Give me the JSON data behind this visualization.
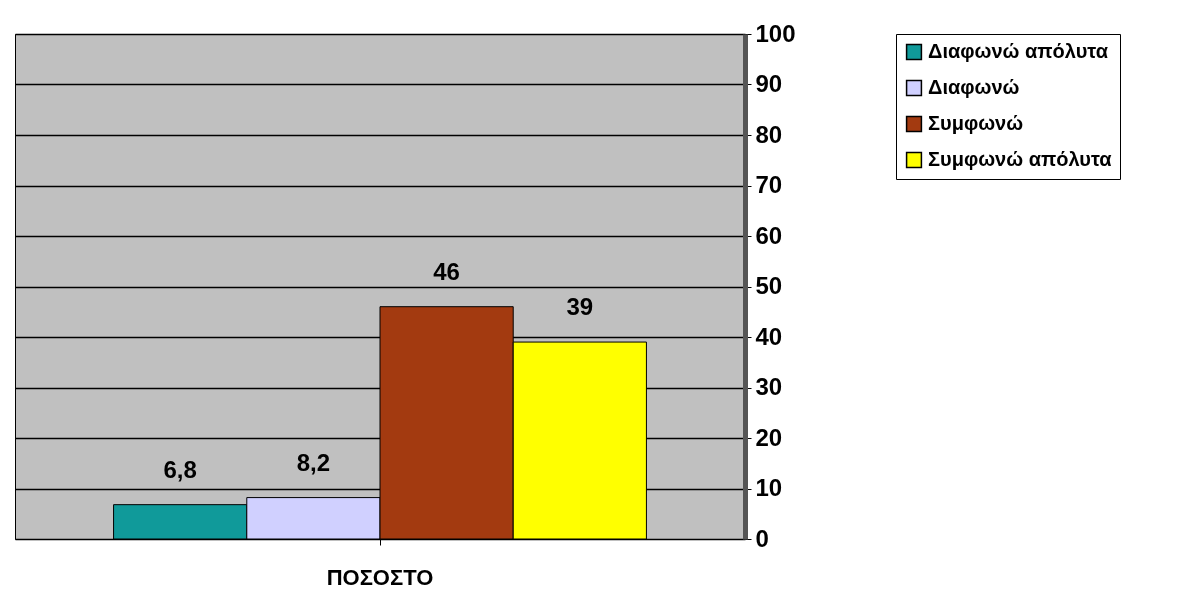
{
  "chart_data": {
    "type": "bar",
    "categories": [
      "ΠΟΣΟΣΤΟ"
    ],
    "series": [
      {
        "name": "Διαφωνώ απόλυτα",
        "color": "#109a9a",
        "values": [
          6.8
        ],
        "value_labels": [
          "6,8"
        ]
      },
      {
        "name": "Διαφωνώ",
        "color": "#d0d0ff",
        "values": [
          8.2
        ],
        "value_labels": [
          "8,2"
        ]
      },
      {
        "name": "Συμφωνώ",
        "color": "#a33a10",
        "values": [
          46
        ],
        "value_labels": [
          "46"
        ]
      },
      {
        "name": "Συμφωνώ απόλυτα",
        "color": "#ffff00",
        "values": [
          39
        ],
        "value_labels": [
          "39"
        ]
      }
    ],
    "ylim": [
      0,
      100
    ],
    "yticks": [
      0,
      10,
      20,
      30,
      40,
      50,
      60,
      70,
      80,
      90,
      100
    ],
    "grid": "y",
    "legend": "right"
  }
}
